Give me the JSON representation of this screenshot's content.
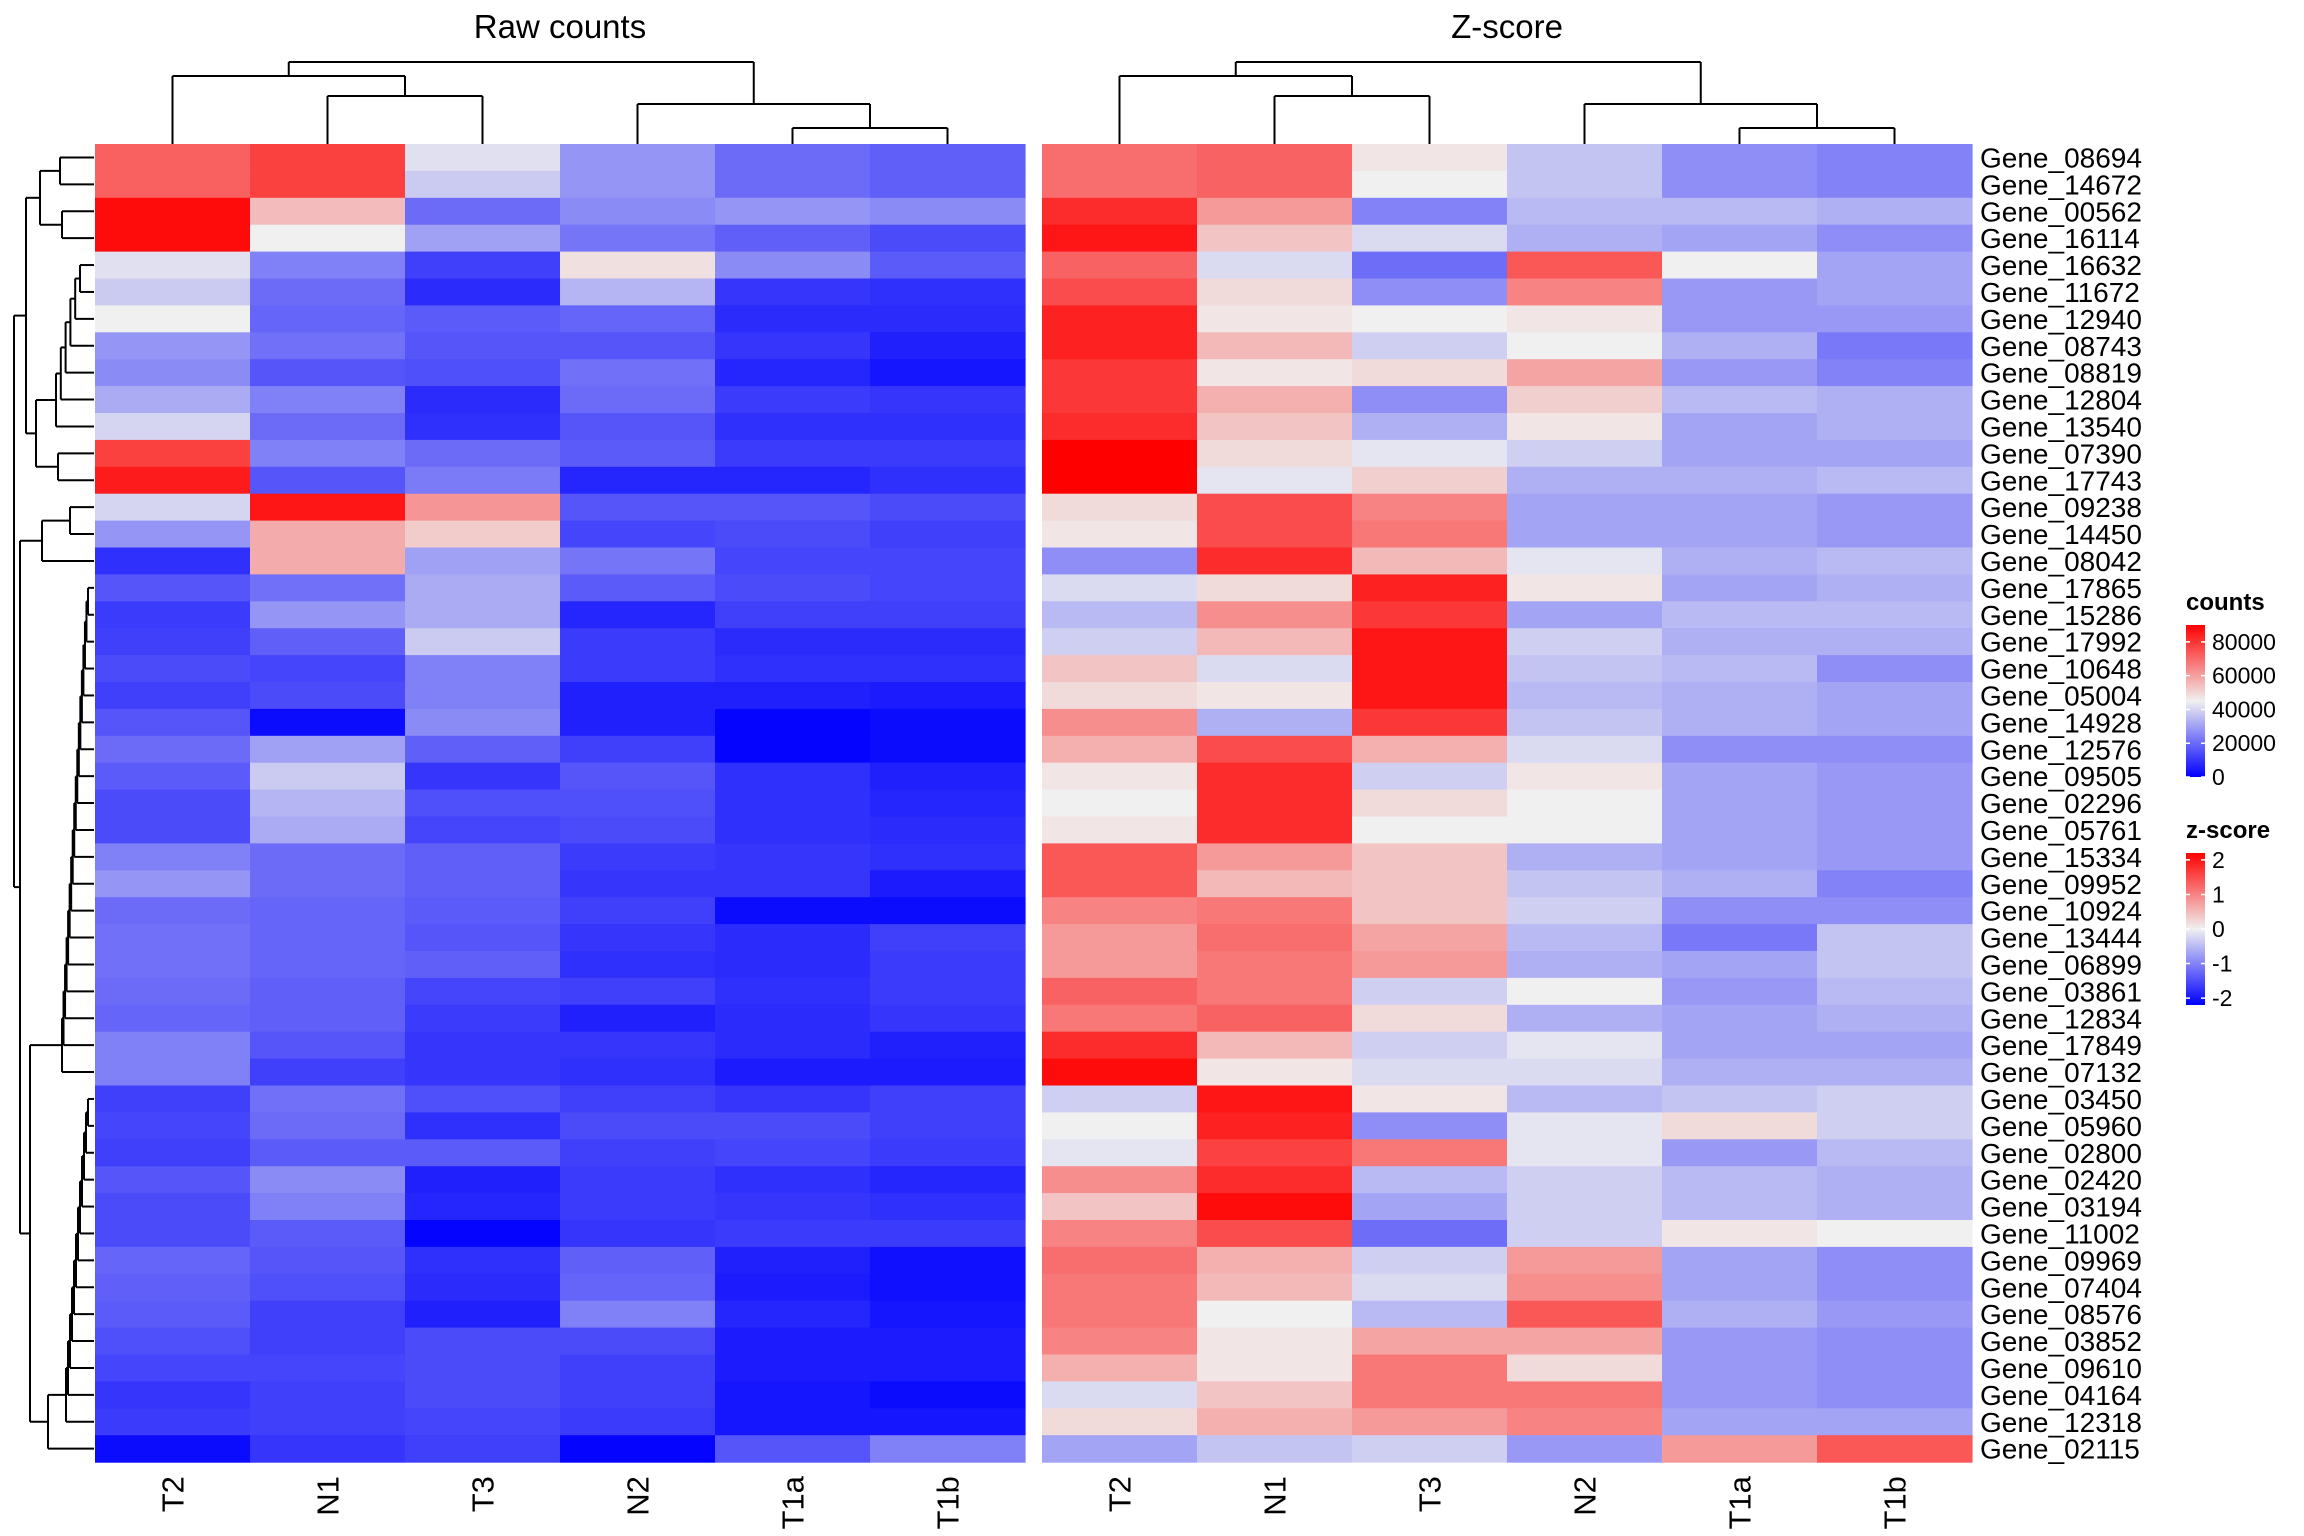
{
  "chart_data": {
    "type": "heatmap",
    "genes": [
      "Gene_08694",
      "Gene_14672",
      "Gene_00562",
      "Gene_16114",
      "Gene_16632",
      "Gene_11672",
      "Gene_12940",
      "Gene_08743",
      "Gene_08819",
      "Gene_12804",
      "Gene_13540",
      "Gene_07390",
      "Gene_17743",
      "Gene_09238",
      "Gene_14450",
      "Gene_08042",
      "Gene_17865",
      "Gene_15286",
      "Gene_17992",
      "Gene_10648",
      "Gene_05004",
      "Gene_14928",
      "Gene_12576",
      "Gene_09505",
      "Gene_02296",
      "Gene_05761",
      "Gene_15334",
      "Gene_09952",
      "Gene_10924",
      "Gene_13444",
      "Gene_06899",
      "Gene_03861",
      "Gene_12834",
      "Gene_17849",
      "Gene_07132",
      "Gene_03450",
      "Gene_05960",
      "Gene_02800",
      "Gene_02420",
      "Gene_03194",
      "Gene_11002",
      "Gene_09969",
      "Gene_07404",
      "Gene_08576",
      "Gene_03852",
      "Gene_09610",
      "Gene_04164",
      "Gene_12318",
      "Gene_02115"
    ],
    "panels": [
      {
        "title": "Raw counts",
        "samples": [
          "T2",
          "N1",
          "T3",
          "N2",
          "T1a",
          "T1b"
        ],
        "values": [
          [
            72000,
            78000,
            42000,
            28000,
            20000,
            18000
          ],
          [
            72000,
            78000,
            38000,
            28000,
            20000,
            18000
          ],
          [
            88000,
            55000,
            20000,
            26000,
            28000,
            26000
          ],
          [
            88000,
            45000,
            30000,
            22000,
            18000,
            14000
          ],
          [
            42000,
            24000,
            12000,
            48000,
            26000,
            17000
          ],
          [
            38000,
            20000,
            8000,
            34000,
            10000,
            9000
          ],
          [
            45000,
            19000,
            17000,
            19000,
            8000,
            8000
          ],
          [
            28000,
            21000,
            16000,
            16000,
            10000,
            6000
          ],
          [
            26000,
            16000,
            15000,
            21000,
            7000,
            4000
          ],
          [
            32000,
            24000,
            8000,
            20000,
            11000,
            10000
          ],
          [
            40000,
            20000,
            9000,
            16000,
            9000,
            9000
          ],
          [
            78000,
            24000,
            20000,
            17000,
            11000,
            11000
          ],
          [
            85000,
            16000,
            23000,
            7000,
            7000,
            9000
          ],
          [
            40000,
            86000,
            62000,
            16000,
            16000,
            14000
          ],
          [
            28000,
            58000,
            52000,
            13000,
            14000,
            12000
          ],
          [
            9000,
            58000,
            30000,
            22000,
            13000,
            13000
          ],
          [
            16000,
            21000,
            32000,
            17000,
            14000,
            13000
          ],
          [
            11000,
            28000,
            32000,
            7000,
            12000,
            12000
          ],
          [
            12000,
            18000,
            38000,
            11000,
            8000,
            8000
          ],
          [
            14000,
            13000,
            24000,
            11000,
            9000,
            9000
          ],
          [
            12000,
            14000,
            24000,
            6000,
            6000,
            5000
          ],
          [
            16000,
            2000,
            26000,
            6000,
            1000,
            2000
          ],
          [
            20000,
            30000,
            18000,
            12000,
            1000,
            2000
          ],
          [
            17000,
            38000,
            10000,
            16000,
            9000,
            6000
          ],
          [
            14000,
            34000,
            15000,
            15000,
            9000,
            7000
          ],
          [
            14000,
            32000,
            13000,
            14000,
            9000,
            8000
          ],
          [
            24000,
            20000,
            18000,
            11000,
            10000,
            9000
          ],
          [
            28000,
            20000,
            18000,
            10000,
            10000,
            5000
          ],
          [
            20000,
            19000,
            17000,
            12000,
            2000,
            2000
          ],
          [
            21000,
            19000,
            16000,
            10000,
            8000,
            12000
          ],
          [
            21000,
            19000,
            18000,
            9000,
            8000,
            11000
          ],
          [
            20000,
            18000,
            13000,
            12000,
            9000,
            11000
          ],
          [
            19000,
            18000,
            11000,
            6000,
            8000,
            10000
          ],
          [
            24000,
            16000,
            10000,
            10000,
            8000,
            6000
          ],
          [
            24000,
            12000,
            10000,
            9000,
            5000,
            5000
          ],
          [
            12000,
            21000,
            15000,
            12000,
            10000,
            12000
          ],
          [
            13000,
            20000,
            9000,
            14000,
            14000,
            12000
          ],
          [
            12000,
            17000,
            17000,
            12000,
            13000,
            11000
          ],
          [
            16000,
            26000,
            6000,
            11000,
            9000,
            7000
          ],
          [
            14000,
            24000,
            7000,
            11000,
            10000,
            9000
          ],
          [
            14000,
            17000,
            1000,
            10000,
            11000,
            11000
          ],
          [
            19000,
            16000,
            9000,
            18000,
            6000,
            3000
          ],
          [
            18000,
            15000,
            8000,
            19000,
            5000,
            3000
          ],
          [
            17000,
            12000,
            6000,
            24000,
            7000,
            4000
          ],
          [
            15000,
            12000,
            14000,
            14000,
            5000,
            5000
          ],
          [
            13000,
            13000,
            14000,
            12000,
            5000,
            5000
          ],
          [
            10000,
            12000,
            14000,
            12000,
            4000,
            2000
          ],
          [
            11000,
            12000,
            13000,
            11000,
            4000,
            4000
          ],
          [
            2000,
            10000,
            12000,
            1000,
            16000,
            24000
          ]
        ]
      },
      {
        "title": "Z-score",
        "samples": [
          "T2",
          "N1",
          "T3",
          "N2",
          "T1a",
          "T1b"
        ],
        "values": [
          [
            1.2,
            1.3,
            0.1,
            -0.4,
            -0.9,
            -1.0
          ],
          [
            1.2,
            1.3,
            0.0,
            -0.4,
            -0.9,
            -1.0
          ],
          [
            1.8,
            0.8,
            -1.0,
            -0.5,
            -0.5,
            -0.6
          ],
          [
            2.0,
            0.4,
            -0.2,
            -0.6,
            -0.7,
            -0.9
          ],
          [
            1.3,
            -0.2,
            -1.2,
            1.4,
            0.0,
            -0.7
          ],
          [
            1.5,
            0.2,
            -0.9,
            1.0,
            -0.8,
            -0.7
          ],
          [
            1.9,
            0.1,
            0.0,
            0.1,
            -0.8,
            -0.8
          ],
          [
            1.9,
            0.5,
            -0.3,
            0.0,
            -0.6,
            -1.1
          ],
          [
            1.7,
            0.1,
            0.2,
            0.7,
            -0.8,
            -1.0
          ],
          [
            1.7,
            0.6,
            -0.9,
            0.3,
            -0.5,
            -0.6
          ],
          [
            1.8,
            0.4,
            -0.6,
            0.1,
            -0.7,
            -0.6
          ],
          [
            2.2,
            0.2,
            -0.1,
            -0.3,
            -0.7,
            -0.7
          ],
          [
            2.2,
            -0.1,
            0.3,
            -0.6,
            -0.6,
            -0.5
          ],
          [
            0.2,
            1.5,
            1.0,
            -0.7,
            -0.7,
            -0.8
          ],
          [
            0.1,
            1.5,
            1.1,
            -0.7,
            -0.7,
            -0.8
          ],
          [
            -0.9,
            1.8,
            0.5,
            -0.1,
            -0.6,
            -0.5
          ],
          [
            -0.2,
            0.2,
            1.9,
            0.1,
            -0.7,
            -0.6
          ],
          [
            -0.5,
            0.9,
            1.7,
            -0.7,
            -0.5,
            -0.5
          ],
          [
            -0.3,
            0.5,
            2.0,
            -0.3,
            -0.6,
            -0.6
          ],
          [
            0.4,
            -0.2,
            2.0,
            -0.4,
            -0.5,
            -0.9
          ],
          [
            0.2,
            0.1,
            2.0,
            -0.5,
            -0.6,
            -0.7
          ],
          [
            0.9,
            -0.6,
            1.7,
            -0.4,
            -0.6,
            -0.7
          ],
          [
            0.6,
            1.5,
            0.6,
            -0.2,
            -0.9,
            -0.9
          ],
          [
            0.1,
            1.8,
            -0.3,
            0.1,
            -0.7,
            -0.8
          ],
          [
            0.0,
            1.8,
            0.2,
            0.0,
            -0.7,
            -0.8
          ],
          [
            0.1,
            1.8,
            0.0,
            0.0,
            -0.7,
            -0.8
          ],
          [
            1.4,
            0.8,
            0.4,
            -0.6,
            -0.7,
            -0.8
          ],
          [
            1.4,
            0.5,
            0.4,
            -0.4,
            -0.6,
            -1.0
          ],
          [
            1.0,
            1.1,
            0.4,
            -0.3,
            -0.9,
            -0.9
          ],
          [
            0.8,
            1.2,
            0.7,
            -0.5,
            -1.1,
            -0.4
          ],
          [
            0.8,
            1.1,
            0.8,
            -0.6,
            -0.7,
            -0.4
          ],
          [
            1.3,
            1.1,
            -0.3,
            0.0,
            -0.8,
            -0.5
          ],
          [
            1.1,
            1.3,
            0.2,
            -0.6,
            -0.7,
            -0.6
          ],
          [
            1.8,
            0.5,
            -0.3,
            -0.1,
            -0.7,
            -0.7
          ],
          [
            2.1,
            0.1,
            -0.2,
            -0.2,
            -0.6,
            -0.6
          ],
          [
            -0.3,
            2.0,
            0.1,
            -0.5,
            -0.4,
            -0.3
          ],
          [
            0.0,
            1.9,
            -0.9,
            -0.1,
            0.2,
            -0.3
          ],
          [
            -0.1,
            1.6,
            1.1,
            -0.1,
            -0.8,
            -0.5
          ],
          [
            0.9,
            1.8,
            -0.5,
            -0.3,
            -0.5,
            -0.6
          ],
          [
            0.4,
            2.1,
            -0.7,
            -0.3,
            -0.5,
            -0.6
          ],
          [
            1.0,
            1.5,
            -1.2,
            -0.3,
            0.1,
            0.0
          ],
          [
            1.2,
            0.6,
            -0.3,
            0.8,
            -0.7,
            -0.9
          ],
          [
            1.1,
            0.5,
            -0.2,
            0.9,
            -0.7,
            -0.9
          ],
          [
            1.1,
            0.0,
            -0.5,
            1.4,
            -0.6,
            -0.8
          ],
          [
            1.0,
            0.1,
            0.7,
            0.7,
            -0.8,
            -0.9
          ],
          [
            0.6,
            0.1,
            1.1,
            0.2,
            -0.8,
            -0.9
          ],
          [
            -0.2,
            0.4,
            1.1,
            1.1,
            -0.8,
            -0.9
          ],
          [
            0.2,
            0.6,
            0.8,
            1.0,
            -0.7,
            -0.7
          ],
          [
            -0.7,
            -0.4,
            -0.3,
            -0.8,
            0.8,
            1.4
          ]
        ]
      }
    ],
    "legends": [
      {
        "title": "counts",
        "ticks": [
          "80000",
          "60000",
          "40000",
          "20000",
          "0"
        ],
        "range": [
          0,
          90000
        ]
      },
      {
        "title": "z-score",
        "ticks": [
          "2",
          "1",
          "0",
          "-1",
          "-2"
        ],
        "range": [
          -2.2,
          2.2
        ]
      }
    ],
    "colors": {
      "low": "#0000ff",
      "mid": "#f0f0f0",
      "high": "#ff0000"
    }
  }
}
